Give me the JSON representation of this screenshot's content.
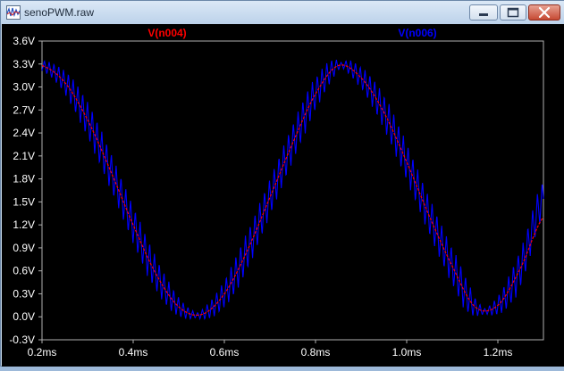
{
  "window": {
    "title": "senoPWM.raw",
    "icons": {
      "app": "waveform-viewer-icon",
      "minimize": "minimize-icon",
      "maximize": "maximize-icon",
      "close": "close-icon"
    }
  },
  "colors": {
    "background": "#000000",
    "axes": "#b0b0b0",
    "tick_labels": "#ffffff",
    "trace_red": "#ff0000",
    "trace_blue": "#0000ff"
  },
  "chart_data": {
    "type": "line",
    "title": "",
    "xlabel": "",
    "ylabel": "",
    "xlim": [
      0.2,
      1.3
    ],
    "ylim": [
      -0.3,
      3.6
    ],
    "x_unit": "ms",
    "y_unit": "V",
    "x_ticks": [
      "0.2ms",
      "0.4ms",
      "0.6ms",
      "0.8ms",
      "1.0ms",
      "1.2ms"
    ],
    "y_ticks": [
      "3.6V",
      "3.3V",
      "3.0V",
      "2.7V",
      "2.4V",
      "2.1V",
      "1.8V",
      "1.5V",
      "1.2V",
      "0.9V",
      "0.6V",
      "0.3V",
      "0.0V",
      "-0.3V"
    ],
    "grid": false,
    "legend": "top",
    "series": [
      {
        "name": "V(n004)",
        "color": "#ff0000",
        "x": [
          0.2,
          0.25,
          0.3,
          0.35,
          0.4,
          0.45,
          0.5,
          0.55,
          0.6,
          0.65,
          0.7,
          0.75,
          0.8,
          0.85,
          0.9,
          0.95,
          1.0,
          1.05,
          1.1,
          1.15,
          1.2,
          1.25,
          1.3
        ],
        "values": [
          3.28,
          3.06,
          2.57,
          1.91,
          1.2,
          0.56,
          0.13,
          0.03,
          0.3,
          0.86,
          1.56,
          2.27,
          2.91,
          3.28,
          3.12,
          2.67,
          2.02,
          1.31,
          0.66,
          0.13,
          0.15,
          0.64,
          1.3
        ]
      },
      {
        "name": "V(n006)",
        "color": "#0000ff",
        "x": [
          0.2,
          0.25,
          0.3,
          0.35,
          0.4,
          0.45,
          0.5,
          0.55,
          0.6,
          0.65,
          0.7,
          0.75,
          0.8,
          0.85,
          0.9,
          0.95,
          1.0,
          1.05,
          1.1,
          1.15,
          1.2,
          1.25,
          1.3
        ],
        "values": [
          3.28,
          3.06,
          2.57,
          1.91,
          1.2,
          0.56,
          0.13,
          0.03,
          0.3,
          0.86,
          1.56,
          2.27,
          2.91,
          3.28,
          3.12,
          2.67,
          2.02,
          1.31,
          0.66,
          0.13,
          0.15,
          0.64,
          1.55
        ],
        "ripple_amplitude": 0.25
      }
    ]
  }
}
